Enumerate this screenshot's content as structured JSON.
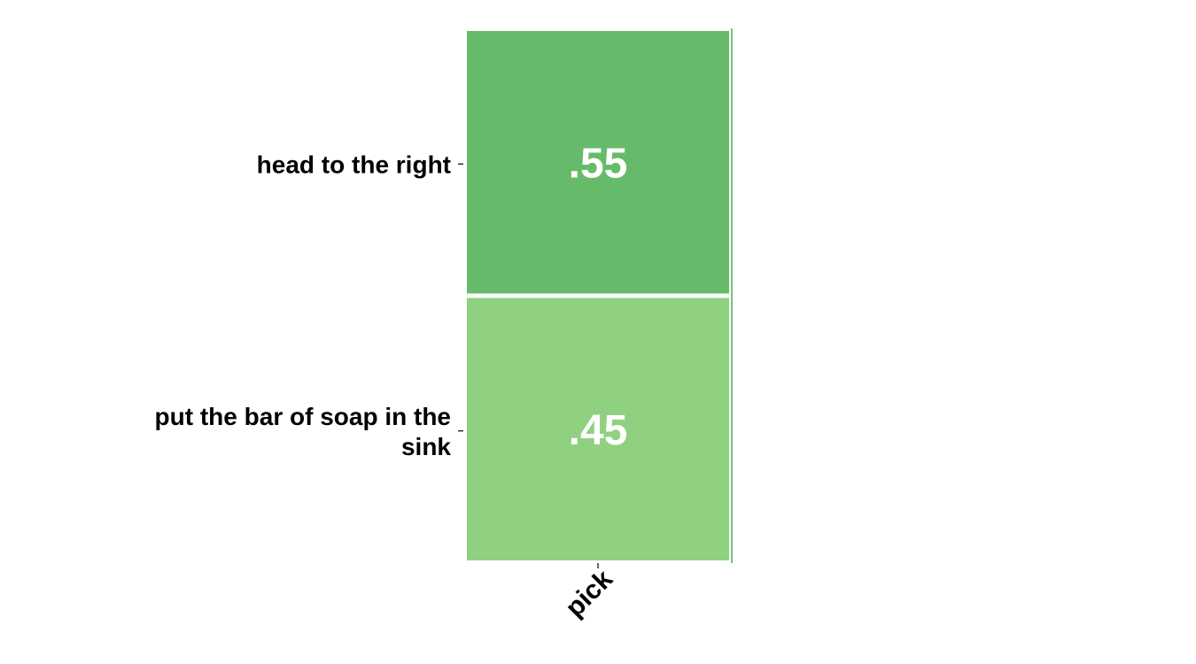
{
  "chart_data": {
    "type": "heatmap",
    "title": "",
    "xlabel": "",
    "ylabel": "",
    "columns": [
      "pick"
    ],
    "rows": [
      "head to the right",
      "put the bar of soap in the sink"
    ],
    "values": [
      [
        0.55
      ],
      [
        0.45
      ]
    ],
    "value_labels": [
      [
        ".55"
      ],
      [
        ".45"
      ]
    ],
    "cell_colors": [
      [
        "#66bb6a"
      ],
      [
        "#8fd081"
      ]
    ],
    "grid": false,
    "legend": "none"
  }
}
